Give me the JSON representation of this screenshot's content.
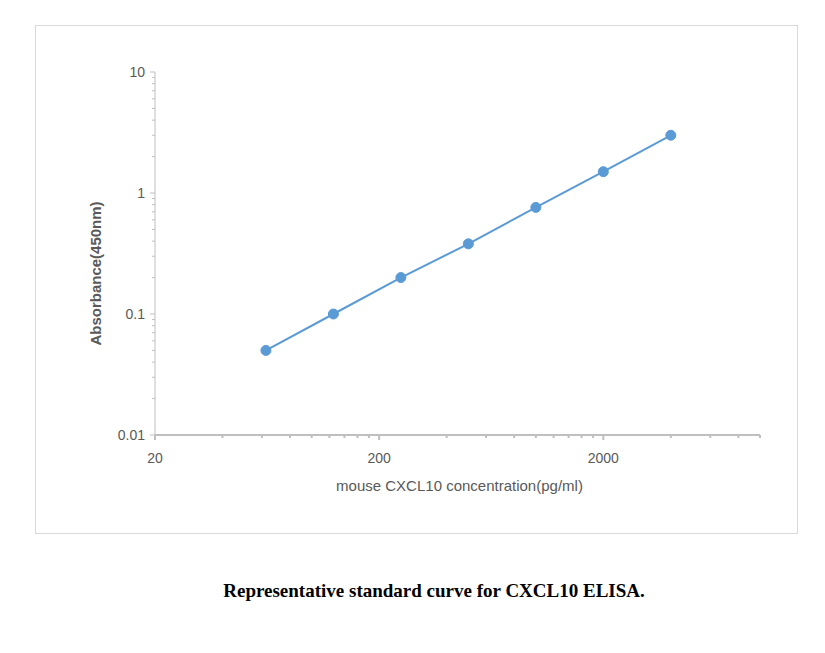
{
  "chart_data": {
    "type": "line",
    "title": "Representative standard curve for CXCL10 ELISA.",
    "x_label": "mouse CXCL10 concentration(pg/ml)",
    "y_label": "Absorbance(450nm)",
    "x": [
      62.5,
      125,
      250,
      500,
      1000,
      2000,
      4000
    ],
    "series": [
      {
        "name": "CXCL10",
        "color": "#5b9bd5",
        "marker": "circle",
        "values": [
          0.05,
          0.1,
          0.2,
          0.38,
          0.76,
          1.5,
          3.0
        ]
      }
    ],
    "xlim": [
      20,
      10000
    ],
    "xticks": [
      20,
      200,
      2000
    ],
    "ylim": [
      0.01,
      10
    ],
    "yticks": [
      0.01,
      0.1,
      1,
      10
    ],
    "log": true,
    "grid": false
  }
}
